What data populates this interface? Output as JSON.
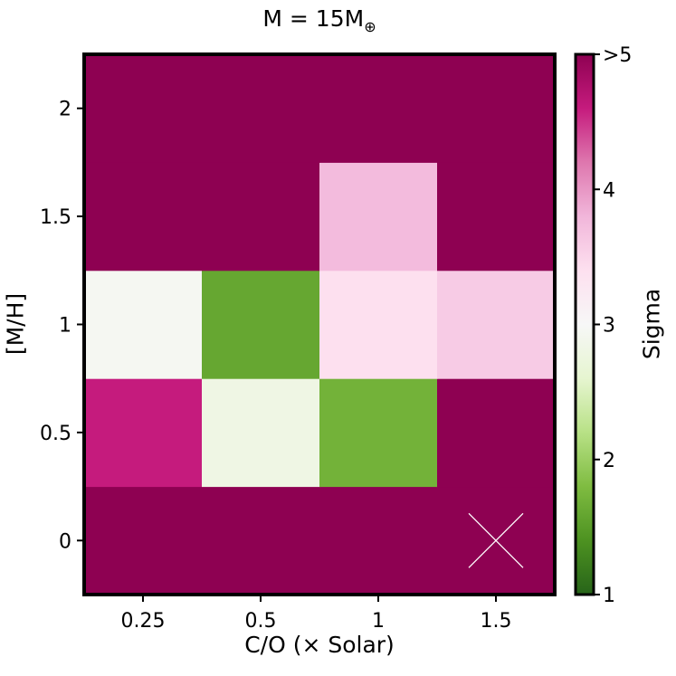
{
  "chart_data": {
    "type": "heatmap",
    "title_main": "M = 15M",
    "title_sub": "⊕",
    "xlabel": "C/O (× Solar)",
    "ylabel": "[M/H]",
    "x_categories": [
      "0.25",
      "0.5",
      "1",
      "1.5"
    ],
    "y_categories": [
      "0",
      "0.5",
      "1",
      "1.5",
      "2"
    ],
    "sigma": [
      [
        5.0,
        5.0,
        5.0,
        5.0
      ],
      [
        4.6,
        2.8,
        1.7,
        5.0
      ],
      [
        2.95,
        1.6,
        3.4,
        3.6
      ],
      [
        5.0,
        5.0,
        3.75,
        5.0
      ],
      [
        5.0,
        5.0,
        5.0,
        5.0
      ]
    ],
    "marker": {
      "type": "x",
      "x": "1.5",
      "y": "0"
    },
    "colorbar": {
      "label": "Sigma",
      "range": [
        1,
        5
      ],
      "ticks": [
        "1",
        "2",
        "3",
        "4",
        ">5"
      ],
      "colormap": "PiYG"
    }
  }
}
